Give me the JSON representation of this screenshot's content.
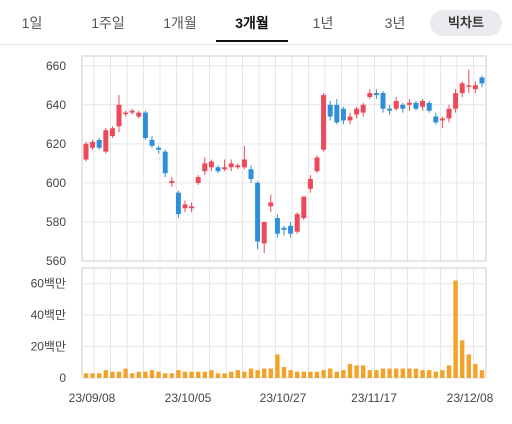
{
  "tabs": [
    {
      "label": "1일",
      "active": false
    },
    {
      "label": "1주일",
      "active": false
    },
    {
      "label": "1개월",
      "active": false
    },
    {
      "label": "3개월",
      "active": true
    },
    {
      "label": "1년",
      "active": false
    },
    {
      "label": "3년",
      "active": false
    }
  ],
  "big_chart_label": "빅차트",
  "colors": {
    "up": "#ec4a5a",
    "down": "#2e8fd8",
    "volume": "#f3a32a",
    "grid": "#e6e6e6",
    "frame": "#cccccc"
  },
  "chart_data": [
    {
      "type": "candlestick",
      "title": "",
      "ylim": [
        560,
        665
      ],
      "yticks": [
        560,
        580,
        600,
        620,
        640,
        660
      ],
      "xtick_labels": [
        "23/09/08",
        "23/10/05",
        "23/10/27",
        "23/11/17",
        "23/12/08"
      ],
      "grid": true,
      "candles": [
        {
          "o": 612,
          "h": 621,
          "l": 611,
          "c": 620
        },
        {
          "o": 618,
          "h": 622,
          "l": 617,
          "c": 621
        },
        {
          "o": 622,
          "h": 623,
          "l": 617,
          "c": 618
        },
        {
          "o": 616,
          "h": 628,
          "l": 615,
          "c": 627
        },
        {
          "o": 624,
          "h": 629,
          "l": 623,
          "c": 628
        },
        {
          "o": 629,
          "h": 645,
          "l": 626,
          "c": 640
        },
        {
          "o": 636,
          "h": 637,
          "l": 634,
          "c": 636
        },
        {
          "o": 636,
          "h": 638,
          "l": 635,
          "c": 637
        },
        {
          "o": 634,
          "h": 637,
          "l": 633,
          "c": 636
        },
        {
          "o": 636,
          "h": 637,
          "l": 622,
          "c": 623
        },
        {
          "o": 622,
          "h": 624,
          "l": 618,
          "c": 619
        },
        {
          "o": 618,
          "h": 619,
          "l": 615,
          "c": 617
        },
        {
          "o": 616,
          "h": 617,
          "l": 603,
          "c": 605
        },
        {
          "o": 600,
          "h": 603,
          "l": 598,
          "c": 601
        },
        {
          "o": 595,
          "h": 596,
          "l": 582,
          "c": 584
        },
        {
          "o": 587,
          "h": 591,
          "l": 585,
          "c": 589
        },
        {
          "o": 587,
          "h": 590,
          "l": 585,
          "c": 588
        },
        {
          "o": 600,
          "h": 604,
          "l": 599,
          "c": 603
        },
        {
          "o": 606,
          "h": 613,
          "l": 604,
          "c": 610
        },
        {
          "o": 608,
          "h": 612,
          "l": 606,
          "c": 611
        },
        {
          "o": 608,
          "h": 609,
          "l": 605,
          "c": 606
        },
        {
          "o": 607,
          "h": 612,
          "l": 606,
          "c": 608
        },
        {
          "o": 608,
          "h": 612,
          "l": 606,
          "c": 610
        },
        {
          "o": 608,
          "h": 610,
          "l": 607,
          "c": 609
        },
        {
          "o": 608,
          "h": 619,
          "l": 607,
          "c": 612
        },
        {
          "o": 607,
          "h": 609,
          "l": 600,
          "c": 602
        },
        {
          "o": 600,
          "h": 601,
          "l": 566,
          "c": 570
        },
        {
          "o": 569,
          "h": 580,
          "l": 564,
          "c": 580
        },
        {
          "o": 588,
          "h": 594,
          "l": 585,
          "c": 590
        },
        {
          "o": 582,
          "h": 584,
          "l": 572,
          "c": 574
        },
        {
          "o": 577,
          "h": 578,
          "l": 573,
          "c": 576
        },
        {
          "o": 578,
          "h": 580,
          "l": 572,
          "c": 574
        },
        {
          "o": 575,
          "h": 585,
          "l": 574,
          "c": 584
        },
        {
          "o": 582,
          "h": 593,
          "l": 581,
          "c": 593
        },
        {
          "o": 597,
          "h": 604,
          "l": 595,
          "c": 602
        },
        {
          "o": 606,
          "h": 614,
          "l": 605,
          "c": 613
        },
        {
          "o": 617,
          "h": 646,
          "l": 616,
          "c": 645
        },
        {
          "o": 640,
          "h": 642,
          "l": 632,
          "c": 634
        },
        {
          "o": 640,
          "h": 643,
          "l": 630,
          "c": 631
        },
        {
          "o": 638,
          "h": 639,
          "l": 630,
          "c": 632
        },
        {
          "o": 632,
          "h": 636,
          "l": 630,
          "c": 634
        },
        {
          "o": 635,
          "h": 639,
          "l": 633,
          "c": 638
        },
        {
          "o": 636,
          "h": 641,
          "l": 634,
          "c": 640
        },
        {
          "o": 644,
          "h": 648,
          "l": 643,
          "c": 646
        },
        {
          "o": 646,
          "h": 648,
          "l": 643,
          "c": 645
        },
        {
          "o": 646,
          "h": 647,
          "l": 636,
          "c": 638
        },
        {
          "o": 638,
          "h": 640,
          "l": 635,
          "c": 637
        },
        {
          "o": 638,
          "h": 644,
          "l": 637,
          "c": 642
        },
        {
          "o": 640,
          "h": 641,
          "l": 636,
          "c": 638
        },
        {
          "o": 640,
          "h": 643,
          "l": 637,
          "c": 641
        },
        {
          "o": 641,
          "h": 642,
          "l": 637,
          "c": 638
        },
        {
          "o": 639,
          "h": 643,
          "l": 637,
          "c": 642
        },
        {
          "o": 641,
          "h": 642,
          "l": 636,
          "c": 637
        },
        {
          "o": 634,
          "h": 636,
          "l": 630,
          "c": 631
        },
        {
          "o": 632,
          "h": 634,
          "l": 628,
          "c": 633
        },
        {
          "o": 633,
          "h": 640,
          "l": 631,
          "c": 638
        },
        {
          "o": 638,
          "h": 648,
          "l": 636,
          "c": 646
        },
        {
          "o": 646,
          "h": 652,
          "l": 644,
          "c": 651
        },
        {
          "o": 650,
          "h": 658,
          "l": 646,
          "c": 650
        },
        {
          "o": 648,
          "h": 652,
          "l": 646,
          "c": 650
        },
        {
          "o": 654,
          "h": 655,
          "l": 649,
          "c": 651
        }
      ]
    },
    {
      "type": "bar",
      "title": "",
      "ylim": [
        0,
        70
      ],
      "yticks": [
        {
          "v": 0,
          "label": "0"
        },
        {
          "v": 20,
          "label": "20백만"
        },
        {
          "v": 40,
          "label": "40백만"
        },
        {
          "v": 60,
          "label": "60백만"
        }
      ],
      "unit": "백만",
      "values": [
        3,
        3,
        3,
        5,
        4,
        4,
        6,
        3,
        4,
        4,
        5,
        4,
        3,
        3,
        5,
        4,
        4,
        4,
        4,
        5,
        3,
        3,
        4,
        5,
        4,
        6,
        5,
        6,
        6,
        15,
        7,
        5,
        4,
        4,
        4,
        4,
        5,
        6,
        4,
        5,
        9,
        8,
        8,
        5,
        5,
        6,
        6,
        6,
        6,
        6,
        6,
        5,
        5,
        4,
        5,
        8,
        62,
        24,
        15,
        9,
        5
      ]
    }
  ]
}
